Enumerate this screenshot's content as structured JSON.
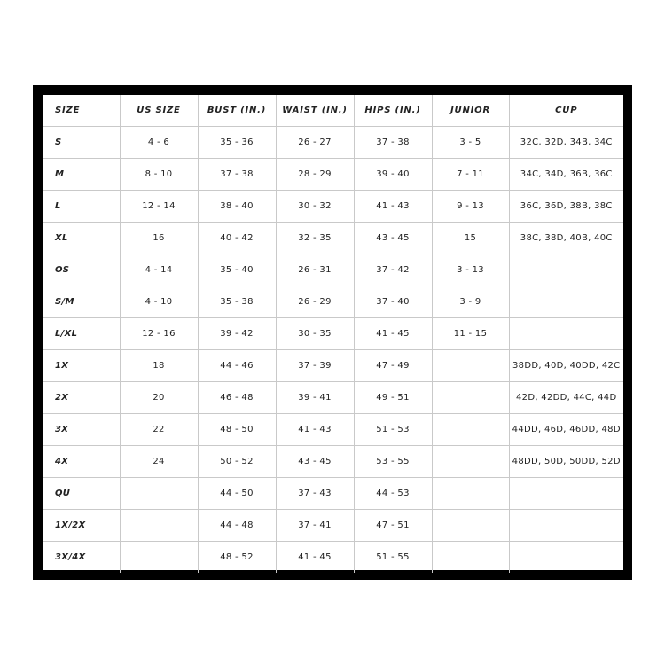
{
  "table": {
    "headers": [
      "SIZE",
      "US SIZE",
      "BUST (IN.)",
      "WAIST (IN.)",
      "HIPS (IN.)",
      "JUNIOR",
      "CUP"
    ],
    "rows": [
      [
        "S",
        "4 - 6",
        "35 - 36",
        "26 - 27",
        "37 - 38",
        "3 - 5",
        "32C, 32D, 34B, 34C"
      ],
      [
        "M",
        "8 - 10",
        "37 - 38",
        "28 - 29",
        "39 - 40",
        "7 - 11",
        "34C, 34D, 36B, 36C"
      ],
      [
        "L",
        "12 - 14",
        "38 - 40",
        "30 - 32",
        "41 - 43",
        "9 - 13",
        "36C, 36D, 38B, 38C"
      ],
      [
        "XL",
        "16",
        "40 - 42",
        "32 - 35",
        "43 - 45",
        "15",
        "38C, 38D, 40B, 40C"
      ],
      [
        "OS",
        "4 - 14",
        "35 - 40",
        "26 - 31",
        "37 - 42",
        "3 - 13",
        ""
      ],
      [
        "S/M",
        "4 - 10",
        "35 - 38",
        "26 - 29",
        "37 - 40",
        "3 - 9",
        ""
      ],
      [
        "L/XL",
        "12 - 16",
        "39 - 42",
        "30 - 35",
        "41 - 45",
        "11 - 15",
        ""
      ],
      [
        "1X",
        "18",
        "44 - 46",
        "37 - 39",
        "47 - 49",
        "",
        "38DD, 40D, 40DD, 42C"
      ],
      [
        "2X",
        "20",
        "46 - 48",
        "39 - 41",
        "49 - 51",
        "",
        "42D, 42DD, 44C, 44D"
      ],
      [
        "3X",
        "22",
        "48 - 50",
        "41 - 43",
        "51 - 53",
        "",
        "44DD, 46D, 46DD, 48D"
      ],
      [
        "4X",
        "24",
        "50 - 52",
        "43 - 45",
        "53 - 55",
        "",
        "48DD, 50D, 50DD, 52D"
      ],
      [
        "QU",
        "",
        "44 - 50",
        "37 - 43",
        "44 - 53",
        "",
        ""
      ],
      [
        "1X/2X",
        "",
        "44 - 48",
        "37 - 41",
        "47 - 51",
        "",
        ""
      ],
      [
        "3X/4X",
        "",
        "48 - 52",
        "41 - 45",
        "51 - 55",
        "",
        ""
      ]
    ]
  }
}
